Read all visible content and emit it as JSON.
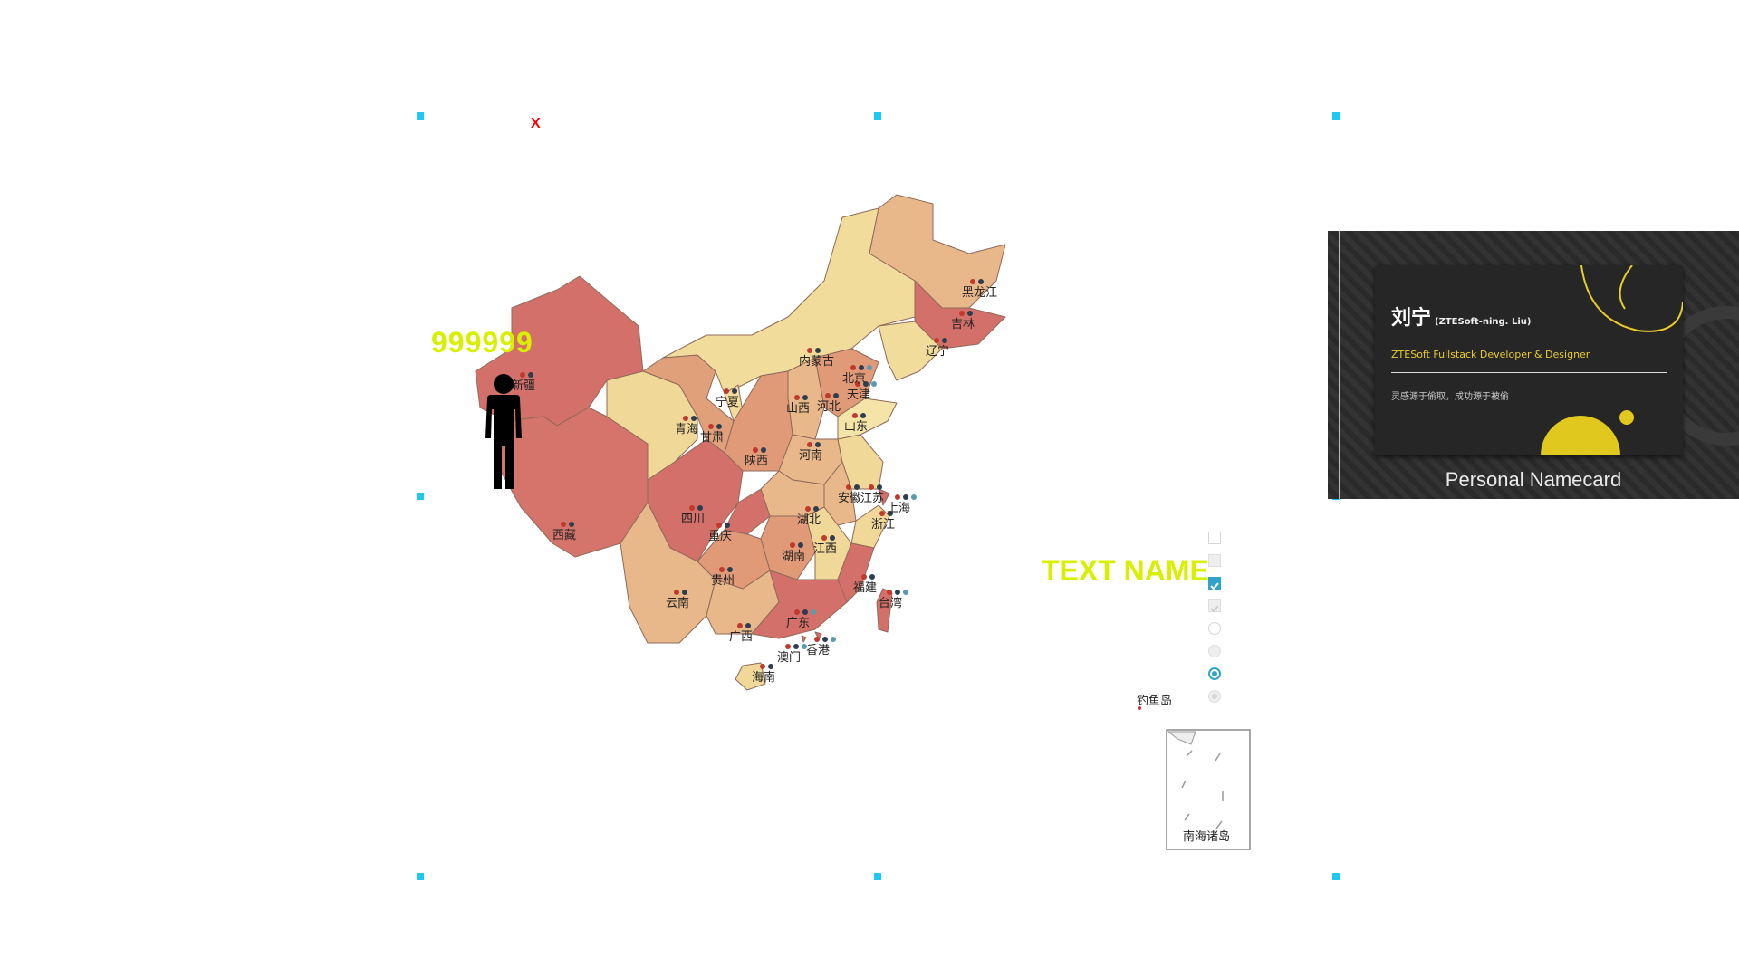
{
  "canvas": {
    "close_label": "X"
  },
  "stat": {
    "value": "999999"
  },
  "text_widget": {
    "label": "TEXT NAME"
  },
  "map": {
    "provinces": [
      {
        "id": "xinjiang",
        "label": "新疆",
        "color": "#d4706a"
      },
      {
        "id": "xizang",
        "label": "西藏",
        "color": "#d4746a"
      },
      {
        "id": "qinghai",
        "label": "青海",
        "color": "#f0d898"
      },
      {
        "id": "gansu",
        "label": "甘肃",
        "color": "#e0a07a"
      },
      {
        "id": "neimenggu",
        "label": "内蒙古",
        "color": "#f2dc9c"
      },
      {
        "id": "heilongjiang",
        "label": "黑龙江",
        "color": "#e8b88a"
      },
      {
        "id": "jilin",
        "label": "吉林",
        "color": "#d4706a"
      },
      {
        "id": "liaoning",
        "label": "辽宁",
        "color": "#f2dc9c"
      },
      {
        "id": "beijing",
        "label": "北京",
        "color": "#d4706a"
      },
      {
        "id": "tianjin",
        "label": "天津",
        "color": "#d4706a"
      },
      {
        "id": "hebei",
        "label": "河北",
        "color": "#e09a78"
      },
      {
        "id": "shanxi",
        "label": "山西",
        "color": "#e8b88a"
      },
      {
        "id": "shandong",
        "label": "山东",
        "color": "#f4e4a8"
      },
      {
        "id": "ningxia",
        "label": "宁夏",
        "color": "#f2dc9c"
      },
      {
        "id": "shaanxi",
        "label": "陕西",
        "color": "#e09a78"
      },
      {
        "id": "henan",
        "label": "河南",
        "color": "#e8b88a"
      },
      {
        "id": "jiangsu",
        "label": "江苏",
        "color": "#f0d898"
      },
      {
        "id": "anhui",
        "label": "安徽",
        "color": "#e8b88a"
      },
      {
        "id": "shanghai",
        "label": "上海",
        "color": "#d4706a"
      },
      {
        "id": "zhejiang",
        "label": "浙江",
        "color": "#f0d898"
      },
      {
        "id": "hubei",
        "label": "湖北",
        "color": "#e8b88a"
      },
      {
        "id": "sichuan",
        "label": "四川",
        "color": "#d4706a"
      },
      {
        "id": "chongqing",
        "label": "重庆",
        "color": "#d4706a"
      },
      {
        "id": "hunan",
        "label": "湖南",
        "color": "#e09a78"
      },
      {
        "id": "jiangxi",
        "label": "江西",
        "color": "#f0d898"
      },
      {
        "id": "fujian",
        "label": "福建",
        "color": "#d4706a"
      },
      {
        "id": "guizhou",
        "label": "贵州",
        "color": "#e09a78"
      },
      {
        "id": "yunnan",
        "label": "云南",
        "color": "#e8b88a"
      },
      {
        "id": "guangxi",
        "label": "广西",
        "color": "#e8b88a"
      },
      {
        "id": "guangdong",
        "label": "广东",
        "color": "#d4706a"
      },
      {
        "id": "hainan",
        "label": "海南",
        "color": "#f0d898"
      },
      {
        "id": "taiwan",
        "label": "台湾",
        "color": "#d4706a"
      },
      {
        "id": "xianggang",
        "label": "香港",
        "color": "#d4706a"
      },
      {
        "id": "aomen",
        "label": "澳门",
        "color": "#d4706a"
      }
    ],
    "extra_labels": {
      "diaoyudao": "钓鱼岛",
      "nanhai": "南海诸岛"
    },
    "marker_colors": {
      "a": "#c0392b",
      "b": "#2c3e50",
      "c": "#5b9bb0"
    }
  },
  "controls": [
    {
      "kind": "checkbox",
      "state": "unchecked"
    },
    {
      "kind": "checkbox",
      "state": "disabled"
    },
    {
      "kind": "checkbox",
      "state": "checked"
    },
    {
      "kind": "checkbox",
      "state": "disabled-checked"
    },
    {
      "kind": "radio",
      "state": "unchecked"
    },
    {
      "kind": "radio",
      "state": "disabled"
    },
    {
      "kind": "radio",
      "state": "checked"
    },
    {
      "kind": "radio",
      "state": "disabled-checked"
    }
  ],
  "namecard": {
    "name": "刘宁",
    "name_en": "(ZTESoft-ning. Liu)",
    "role": "ZTESoft Fullstack Developer & Designer",
    "motto": "灵感源于偷取，成功源于被偷",
    "caption": "Personal Namecard",
    "accent_color": "#e8cc2a"
  }
}
